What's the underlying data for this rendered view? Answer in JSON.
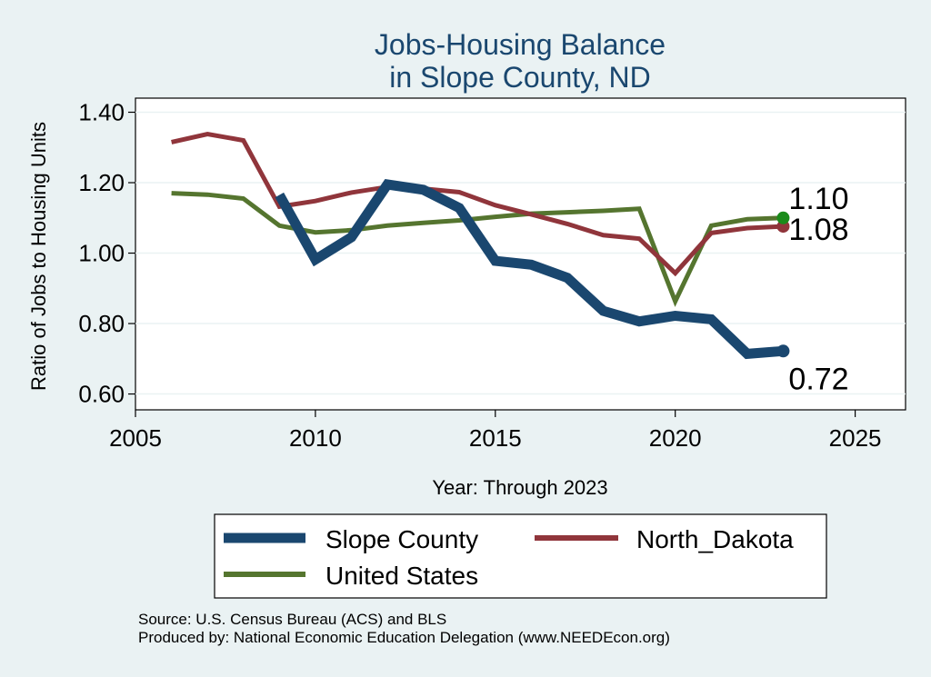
{
  "chart_data": {
    "type": "line",
    "title_lines": [
      "Jobs-Housing Balance",
      "in Slope County, ND"
    ],
    "xlabel": "Year: Through 2023",
    "ylabel": "Ratio of Jobs to Housing Units",
    "xlim": [
      2005,
      2026.4
    ],
    "ylim": [
      0.555,
      1.44
    ],
    "xticks": [
      2005,
      2010,
      2015,
      2020,
      2025
    ],
    "yticks": [
      0.6,
      0.8,
      1.0,
      1.2,
      1.4
    ],
    "ytick_labels": [
      "0.60",
      "0.80",
      "1.00",
      "1.20",
      "1.40"
    ],
    "series": [
      {
        "name": "Slope County",
        "color": "#1a476f",
        "width": 11,
        "x": [
          2009,
          2010,
          2011,
          2012,
          2013,
          2014,
          2015,
          2016,
          2017,
          2018,
          2019,
          2020,
          2021,
          2022,
          2023
        ],
        "values": [
          1.165,
          0.982,
          1.045,
          1.195,
          1.18,
          1.128,
          0.978,
          0.967,
          0.93,
          0.836,
          0.806,
          0.822,
          0.812,
          0.714,
          0.722
        ],
        "end_label": "0.72",
        "marker_color": "#1a476f"
      },
      {
        "name": "North_Dakota",
        "color": "#90353b",
        "width": 5,
        "x": [
          2006,
          2007,
          2008,
          2009,
          2010,
          2011,
          2012,
          2013,
          2014,
          2015,
          2016,
          2017,
          2018,
          2019,
          2020,
          2021,
          2022,
          2023
        ],
        "values": [
          1.315,
          1.338,
          1.32,
          1.132,
          1.148,
          1.172,
          1.188,
          1.183,
          1.173,
          1.136,
          1.11,
          1.083,
          1.051,
          1.041,
          0.943,
          1.057,
          1.071,
          1.076
        ],
        "end_label": "1.08",
        "marker_color": "#90353b"
      },
      {
        "name": "United States",
        "color": "#55752f",
        "width": 5,
        "x": [
          2006,
          2007,
          2008,
          2009,
          2010,
          2011,
          2012,
          2013,
          2014,
          2015,
          2016,
          2017,
          2018,
          2019,
          2020,
          2021,
          2022,
          2023
        ],
        "values": [
          1.17,
          1.166,
          1.155,
          1.078,
          1.059,
          1.065,
          1.078,
          1.086,
          1.093,
          1.103,
          1.112,
          1.116,
          1.12,
          1.126,
          0.863,
          1.078,
          1.096,
          1.1
        ],
        "end_label": "1.10",
        "marker_color": "#1a8b1a"
      }
    ],
    "legend": [
      "Slope County",
      "North_Dakota",
      "United States"
    ]
  },
  "source_lines": [
    "Source: U.S. Census Bureau (ACS) and BLS",
    "Produced by: National Economic Education Delegation (www.NEEDEcon.org)"
  ]
}
